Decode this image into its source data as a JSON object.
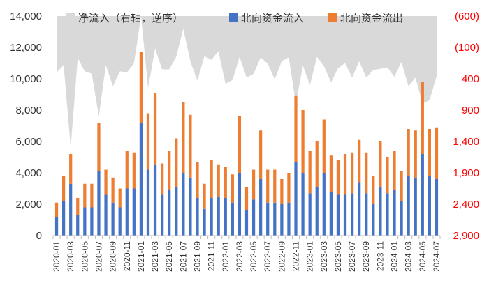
{
  "chart_data": {
    "type": "bar",
    "stacked": true,
    "x": [
      "2020-01",
      "2020-02",
      "2020-03",
      "2020-04",
      "2020-05",
      "2020-06",
      "2020-07",
      "2020-08",
      "2020-09",
      "2020-10",
      "2020-11",
      "2020-12",
      "2021-01",
      "2021-02",
      "2021-03",
      "2021-04",
      "2021-05",
      "2021-06",
      "2021-07",
      "2021-08",
      "2021-09",
      "2021-10",
      "2021-11",
      "2021-12",
      "2022-01",
      "2022-02",
      "2022-03",
      "2022-04",
      "2022-05",
      "2022-06",
      "2022-07",
      "2022-08",
      "2022-09",
      "2022-10",
      "2022-11",
      "2022-12",
      "2023-01",
      "2023-02",
      "2023-03",
      "2023-04",
      "2023-05",
      "2023-06",
      "2023-07",
      "2023-08",
      "2023-09",
      "2023-10",
      "2023-11",
      "2023-12",
      "2024-01",
      "2024-02",
      "2024-03",
      "2024-04",
      "2024-05",
      "2024-06",
      "2024-07"
    ],
    "series": [
      {
        "name": "北向资金流入",
        "color": "#4472c4",
        "values": [
          1200,
          2200,
          3300,
          1300,
          1800,
          1800,
          4100,
          2600,
          2100,
          1800,
          3000,
          3000,
          7200,
          4200,
          4500,
          2600,
          2900,
          3100,
          4000,
          3700,
          2400,
          1700,
          2400,
          2500,
          2400,
          2100,
          4000,
          1600,
          2300,
          3600,
          2100,
          2100,
          2000,
          2100,
          4700,
          4000,
          2700,
          3100,
          4000,
          2800,
          2600,
          2600,
          2700,
          3400,
          2700,
          2000,
          3100,
          2700,
          2900,
          2200,
          3800,
          3700,
          5200,
          3800,
          3600
        ]
      },
      {
        "name": "北向资金流出",
        "color": "#ed7d31",
        "values": [
          900,
          1600,
          1900,
          1100,
          1500,
          1500,
          3100,
          1600,
          1600,
          1200,
          2400,
          2300,
          4500,
          3600,
          4600,
          2000,
          2500,
          3100,
          4500,
          4000,
          2300,
          1600,
          2400,
          2000,
          2000,
          1800,
          3600,
          1500,
          1900,
          3100,
          2100,
          2100,
          1600,
          1900,
          4200,
          4000,
          2700,
          2900,
          3400,
          2300,
          2200,
          2600,
          2600,
          2700,
          2600,
          1800,
          2900,
          2300,
          2500,
          1900,
          3000,
          3000,
          4600,
          3000,
          3300
        ]
      },
      {
        "name": "净流入（右轴，逆序）",
        "color": "#d9d9d9",
        "axis": "right",
        "reversed": true,
        "values": [
          300,
          180,
          1500,
          70,
          280,
          320,
          1000,
          180,
          520,
          280,
          300,
          150,
          -600,
          550,
          -80,
          250,
          250,
          50,
          -400,
          120,
          430,
          40,
          100,
          -40,
          480,
          420,
          50,
          380,
          320,
          60,
          160,
          410,
          120,
          60,
          800,
          190,
          500,
          50,
          200,
          460,
          230,
          150,
          380,
          120,
          380,
          260,
          240,
          220,
          370,
          130,
          520,
          380,
          800,
          740,
          360
        ]
      }
    ],
    "y_left": {
      "ticks": [
        "0",
        "2,000",
        "4,000",
        "6,000",
        "8,000",
        "10,000",
        "12,000",
        "14,000"
      ],
      "ylim": [
        0,
        14000
      ]
    },
    "y_right": {
      "ticks": [
        "(600)",
        "(100)",
        "400",
        "900",
        "1,400",
        "1,900",
        "2,400",
        "2,900"
      ],
      "ylim": [
        -600,
        2900
      ],
      "reversed": true,
      "color": "#ff0000"
    },
    "x_tick_labels": [
      "2020-01",
      "2020-03",
      "2020-05",
      "2020-07",
      "2020-09",
      "2020-11",
      "2021-01",
      "2021-03",
      "2021-05",
      "2021-07",
      "2021-09",
      "2021-11",
      "2022-01",
      "2022-03",
      "2022-05",
      "2022-07",
      "2022-09",
      "2022-11",
      "2023-01",
      "2023-03",
      "2023-05",
      "2023-07",
      "2023-09",
      "2023-11",
      "2024-01",
      "2024-03",
      "2024-05",
      "2024-07"
    ],
    "legend_position": "top",
    "grid": false
  }
}
